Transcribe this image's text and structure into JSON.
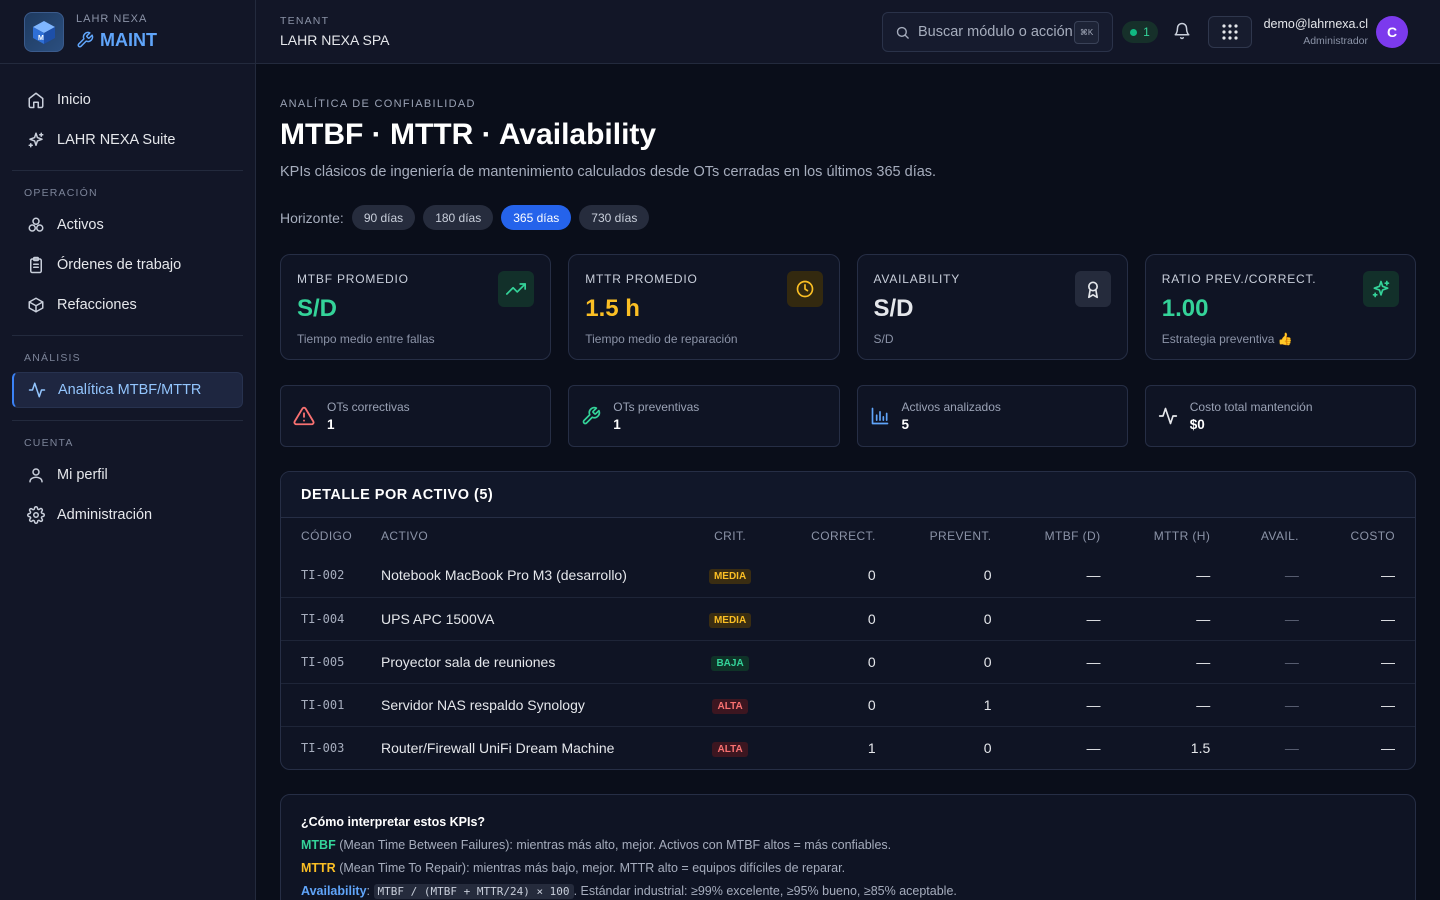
{
  "brand": {
    "subtitle": "LAHR NEXA",
    "name": "MAINT"
  },
  "sidebar": {
    "top_items": [
      {
        "label": "Inicio",
        "icon": "home-icon"
      },
      {
        "label": "LAHR NEXA Suite",
        "icon": "sparkles-icon"
      }
    ],
    "sections": [
      {
        "title": "OPERACIÓN",
        "items": [
          {
            "label": "Activos",
            "icon": "cubes-icon"
          },
          {
            "label": "Órdenes de trabajo",
            "icon": "clipboard-icon"
          },
          {
            "label": "Refacciones",
            "icon": "box-icon"
          }
        ]
      },
      {
        "title": "ANÁLISIS",
        "items": [
          {
            "label": "Analítica MTBF/MTTR",
            "icon": "activity-icon",
            "active": true
          }
        ]
      },
      {
        "title": "CUENTA",
        "items": [
          {
            "label": "Mi perfil",
            "icon": "user-icon"
          },
          {
            "label": "Administración",
            "icon": "gear-icon"
          }
        ]
      }
    ]
  },
  "topbar": {
    "tenant_label": "TENANT",
    "tenant_name": "LAHR NEXA SPA",
    "search_placeholder": "Buscar módulo o acción",
    "search_shortcut": "⌘K",
    "online_count": "1",
    "user_email": "demo@lahrnexa.cl",
    "user_role": "Administrador",
    "avatar_initial": "C"
  },
  "page": {
    "eyebrow": "ANALÍTICA DE CONFIABILIDAD",
    "title": "MTBF · MTTR · Availability",
    "subtitle": "KPIs clásicos de ingeniería de mantenimiento calculados desde OTs cerradas en los últimos 365 días.",
    "horizon_label": "Horizonte:",
    "horizons": [
      "90 días",
      "180 días",
      "365 días",
      "730 días"
    ],
    "selected_horizon": "365 días"
  },
  "kpis": [
    {
      "label": "MTBF PROMEDIO",
      "value": "S/D",
      "desc": "Tiempo medio entre fallas",
      "color": "#34d399",
      "icon": "trending-up-icon",
      "icon_bg": "#12302a"
    },
    {
      "label": "MTTR PROMEDIO",
      "value": "1.5 h",
      "desc": "Tiempo medio de reparación",
      "color": "#fbbf24",
      "icon": "clock-icon",
      "icon_bg": "#33290f"
    },
    {
      "label": "AVAILABILITY",
      "value": "S/D",
      "desc": "S/D",
      "color": "#e5e7eb",
      "icon": "award-icon",
      "icon_bg": "#252b3c"
    },
    {
      "label": "RATIO PREV./CORRECT.",
      "value": "1.00",
      "desc": "Estrategia preventiva 👍",
      "color": "#34d399",
      "icon": "sparkles-icon",
      "icon_bg": "#12302a"
    }
  ],
  "stats": [
    {
      "label": "OTs correctivas",
      "value": "1",
      "icon": "alert-triangle-icon",
      "color": "#f87171"
    },
    {
      "label": "OTs preventivas",
      "value": "1",
      "icon": "wrench-icon",
      "color": "#34d399"
    },
    {
      "label": "Activos analizados",
      "value": "5",
      "icon": "bar-chart-icon",
      "color": "#60a5fa"
    },
    {
      "label": "Costo total mantención",
      "value": "$0",
      "icon": "pulse-icon",
      "color": "#e5e7eb"
    }
  ],
  "table": {
    "title": "DETALLE POR ACTIVO (5)",
    "columns": [
      "CÓDIGO",
      "ACTIVO",
      "CRIT.",
      "CORRECT.",
      "PREVENT.",
      "MTBF (D)",
      "MTTR (H)",
      "AVAIL.",
      "COSTO"
    ],
    "rows": [
      {
        "code": "TI-002",
        "asset": "Notebook MacBook Pro M3 (desarrollo)",
        "crit": "MEDIA",
        "correct": "0",
        "prevent": "0",
        "mtbf": "—",
        "mttr": "—",
        "avail": "—",
        "cost": "—"
      },
      {
        "code": "TI-004",
        "asset": "UPS APC 1500VA",
        "crit": "MEDIA",
        "correct": "0",
        "prevent": "0",
        "mtbf": "—",
        "mttr": "—",
        "avail": "—",
        "cost": "—"
      },
      {
        "code": "TI-005",
        "asset": "Proyector sala de reuniones",
        "crit": "BAJA",
        "correct": "0",
        "prevent": "0",
        "mtbf": "—",
        "mttr": "—",
        "avail": "—",
        "cost": "—"
      },
      {
        "code": "TI-001",
        "asset": "Servidor NAS respaldo Synology",
        "crit": "ALTA",
        "correct": "0",
        "prevent": "1",
        "mtbf": "—",
        "mttr": "—",
        "avail": "—",
        "cost": "—"
      },
      {
        "code": "TI-003",
        "asset": "Router/Firewall UniFi Dream Machine",
        "crit": "ALTA",
        "correct": "1",
        "prevent": "0",
        "mtbf": "—",
        "mttr": "1.5",
        "avail": "—",
        "cost": "—"
      }
    ]
  },
  "help": {
    "title": "¿Cómo interpretar estos KPIs?",
    "mtbf_term": "MTBF",
    "mtbf_text": " (Mean Time Between Failures): mientras más alto, mejor. Activos con MTBF altos = más confiables.",
    "mttr_term": "MTTR",
    "mttr_text": " (Mean Time To Repair): mientras más bajo, mejor. MTTR alto = equipos difíciles de reparar.",
    "avail_term": "Availability",
    "avail_sep": ": ",
    "avail_formula": "MTBF / (MTBF + MTTR/24) × 100",
    "avail_text": ". Estándar industrial: ≥99% excelente, ≥95% bueno, ≥85% aceptable."
  }
}
